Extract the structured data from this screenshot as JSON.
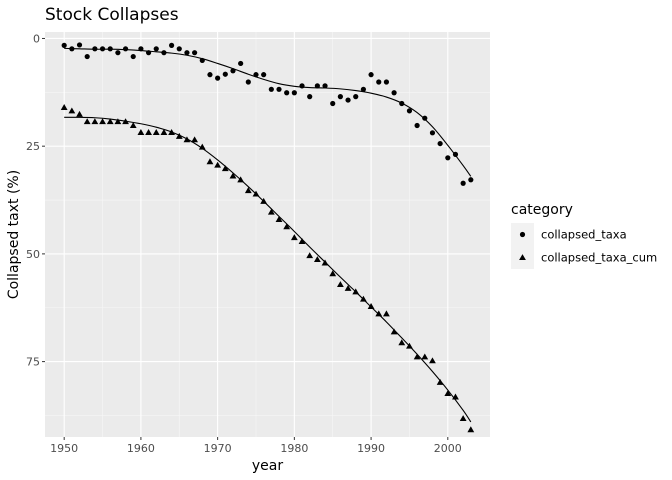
{
  "chart_data": {
    "type": "scatter",
    "title": "Stock Collapses",
    "xlabel": "year",
    "ylabel": "Collapsed taxt (%)",
    "xlim": [
      1947.5,
      2005.5
    ],
    "ylim": [
      -1.5,
      92.5
    ],
    "y_reversed": true,
    "x_ticks": [
      1950,
      1960,
      1970,
      1980,
      1990,
      2000
    ],
    "y_ticks": [
      0,
      25,
      50,
      75
    ],
    "grid": true,
    "legend": {
      "title": "category",
      "placement": "right",
      "entries": [
        {
          "label": "collapsed_taxa",
          "shape": "circle"
        },
        {
          "label": "collapsed_taxa_cum",
          "shape": "triangle"
        }
      ]
    },
    "series": [
      {
        "name": "collapsed_taxa",
        "shape": "circle",
        "points": [
          [
            1950,
            1.6
          ],
          [
            1951,
            2.4
          ],
          [
            1952,
            1.5
          ],
          [
            1953,
            4.2
          ],
          [
            1954,
            2.4
          ],
          [
            1955,
            2.4
          ],
          [
            1956,
            2.4
          ],
          [
            1957,
            3.3
          ],
          [
            1958,
            2.4
          ],
          [
            1959,
            4.2
          ],
          [
            1960,
            2.4
          ],
          [
            1961,
            3.3
          ],
          [
            1962,
            2.4
          ],
          [
            1963,
            3.3
          ],
          [
            1964,
            1.6
          ],
          [
            1965,
            2.4
          ],
          [
            1966,
            3.3
          ],
          [
            1967,
            3.3
          ],
          [
            1968,
            5.1
          ],
          [
            1969,
            8.4
          ],
          [
            1970,
            9.2
          ],
          [
            1971,
            8.3
          ],
          [
            1972,
            7.5
          ],
          [
            1973,
            5.8
          ],
          [
            1974,
            10.1
          ],
          [
            1975,
            8.4
          ],
          [
            1976,
            8.4
          ],
          [
            1977,
            11.8
          ],
          [
            1978,
            11.8
          ],
          [
            1979,
            12.6
          ],
          [
            1980,
            12.6
          ],
          [
            1981,
            11.0
          ],
          [
            1982,
            13.5
          ],
          [
            1983,
            11.0
          ],
          [
            1984,
            11.0
          ],
          [
            1985,
            15.1
          ],
          [
            1986,
            13.5
          ],
          [
            1987,
            14.3
          ],
          [
            1988,
            13.5
          ],
          [
            1989,
            11.8
          ],
          [
            1990,
            8.4
          ],
          [
            1991,
            10.1
          ],
          [
            1992,
            10.1
          ],
          [
            1993,
            12.6
          ],
          [
            1994,
            15.1
          ],
          [
            1995,
            16.8
          ],
          [
            1996,
            20.2
          ],
          [
            1997,
            18.5
          ],
          [
            1998,
            21.9
          ],
          [
            1999,
            24.4
          ],
          [
            2000,
            27.7
          ],
          [
            2001,
            26.9
          ],
          [
            2002,
            33.6
          ],
          [
            2003,
            32.8
          ]
        ],
        "smooth": [
          [
            1950,
            2.3
          ],
          [
            1952,
            2.4
          ],
          [
            1954,
            2.5
          ],
          [
            1956,
            2.5
          ],
          [
            1958,
            2.6
          ],
          [
            1960,
            2.8
          ],
          [
            1962,
            3.1
          ],
          [
            1964,
            3.4
          ],
          [
            1966,
            3.9
          ],
          [
            1968,
            4.7
          ],
          [
            1970,
            5.8
          ],
          [
            1972,
            7.0
          ],
          [
            1974,
            8.3
          ],
          [
            1976,
            9.5
          ],
          [
            1978,
            10.5
          ],
          [
            1980,
            11.1
          ],
          [
            1982,
            11.4
          ],
          [
            1984,
            11.5
          ],
          [
            1986,
            11.7
          ],
          [
            1988,
            12.1
          ],
          [
            1990,
            12.7
          ],
          [
            1992,
            13.6
          ],
          [
            1994,
            15.0
          ],
          [
            1996,
            17.2
          ],
          [
            1998,
            20.5
          ],
          [
            2000,
            24.8
          ],
          [
            2002,
            29.5
          ],
          [
            2003,
            32.0
          ]
        ]
      },
      {
        "name": "collapsed_taxa_cum",
        "shape": "triangle",
        "points": [
          [
            1950,
            16.0
          ],
          [
            1951,
            16.8
          ],
          [
            1952,
            17.6
          ],
          [
            1953,
            19.3
          ],
          [
            1954,
            19.3
          ],
          [
            1955,
            19.3
          ],
          [
            1956,
            19.3
          ],
          [
            1957,
            19.3
          ],
          [
            1958,
            19.3
          ],
          [
            1959,
            20.2
          ],
          [
            1960,
            21.8
          ],
          [
            1961,
            21.8
          ],
          [
            1962,
            21.8
          ],
          [
            1963,
            21.8
          ],
          [
            1964,
            21.8
          ],
          [
            1965,
            22.7
          ],
          [
            1966,
            23.5
          ],
          [
            1967,
            23.5
          ],
          [
            1968,
            25.2
          ],
          [
            1969,
            28.6
          ],
          [
            1970,
            29.4
          ],
          [
            1971,
            30.2
          ],
          [
            1972,
            31.9
          ],
          [
            1973,
            32.8
          ],
          [
            1974,
            35.3
          ],
          [
            1975,
            36.1
          ],
          [
            1976,
            37.8
          ],
          [
            1977,
            40.3
          ],
          [
            1978,
            42.0
          ],
          [
            1979,
            43.7
          ],
          [
            1980,
            46.2
          ],
          [
            1981,
            47.1
          ],
          [
            1982,
            50.4
          ],
          [
            1983,
            51.3
          ],
          [
            1984,
            52.1
          ],
          [
            1985,
            54.6
          ],
          [
            1986,
            57.1
          ],
          [
            1987,
            58.0
          ],
          [
            1988,
            58.8
          ],
          [
            1989,
            60.5
          ],
          [
            1990,
            62.2
          ],
          [
            1991,
            63.9
          ],
          [
            1992,
            63.9
          ],
          [
            1993,
            68.1
          ],
          [
            1994,
            70.6
          ],
          [
            1995,
            71.4
          ],
          [
            1996,
            73.9
          ],
          [
            1997,
            73.9
          ],
          [
            1998,
            74.8
          ],
          [
            1999,
            79.8
          ],
          [
            2000,
            82.4
          ],
          [
            2001,
            83.2
          ],
          [
            2002,
            88.2
          ],
          [
            2003,
            90.8
          ]
        ],
        "smooth": [
          [
            1950,
            18.3
          ],
          [
            1952,
            18.3
          ],
          [
            1954,
            18.4
          ],
          [
            1956,
            18.7
          ],
          [
            1958,
            19.2
          ],
          [
            1960,
            19.8
          ],
          [
            1962,
            20.6
          ],
          [
            1964,
            21.7
          ],
          [
            1966,
            23.3
          ],
          [
            1968,
            25.5
          ],
          [
            1970,
            28.2
          ],
          [
            1972,
            31.2
          ],
          [
            1974,
            34.4
          ],
          [
            1976,
            37.8
          ],
          [
            1978,
            41.3
          ],
          [
            1980,
            44.8
          ],
          [
            1982,
            48.4
          ],
          [
            1984,
            51.9
          ],
          [
            1986,
            55.4
          ],
          [
            1988,
            58.8
          ],
          [
            1990,
            62.3
          ],
          [
            1992,
            65.8
          ],
          [
            1994,
            69.5
          ],
          [
            1996,
            73.3
          ],
          [
            1998,
            77.3
          ],
          [
            2000,
            81.6
          ],
          [
            2002,
            86.3
          ],
          [
            2003,
            89.0
          ]
        ]
      }
    ]
  }
}
